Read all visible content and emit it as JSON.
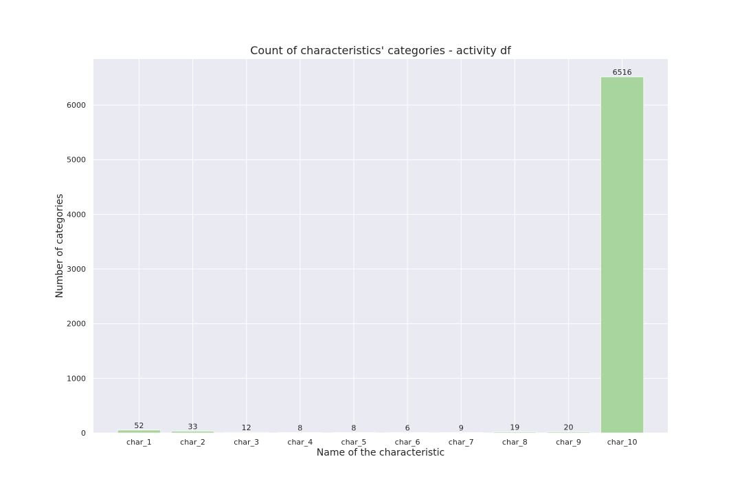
{
  "chart_data": {
    "type": "bar",
    "title": "Count of characteristics' categories - activity df",
    "xlabel": "Name of the characteristic",
    "ylabel": "Number of categories",
    "categories": [
      "char_1",
      "char_2",
      "char_3",
      "char_4",
      "char_5",
      "char_6",
      "char_7",
      "char_8",
      "char_9",
      "char_10"
    ],
    "values": [
      52,
      33,
      12,
      8,
      8,
      6,
      9,
      19,
      20,
      6516
    ],
    "ylim": [
      0,
      6842
    ],
    "yticks": [
      0,
      1000,
      2000,
      3000,
      4000,
      5000,
      6000
    ],
    "grid": true,
    "bar_color": "#a8d49e",
    "plot_background": "#eaeaf2",
    "show_data_labels": true
  }
}
